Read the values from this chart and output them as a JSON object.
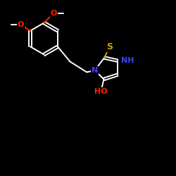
{
  "bg_color": "#000000",
  "bond_color": "#ffffff",
  "S_color": "#ccaa00",
  "N_color": "#4040ff",
  "O_color": "#ff2200",
  "font_size": 8,
  "line_width": 1.4,
  "label_S": "S",
  "label_N": "N",
  "label_NH": "NH",
  "label_HO": "HO",
  "label_O": "O"
}
